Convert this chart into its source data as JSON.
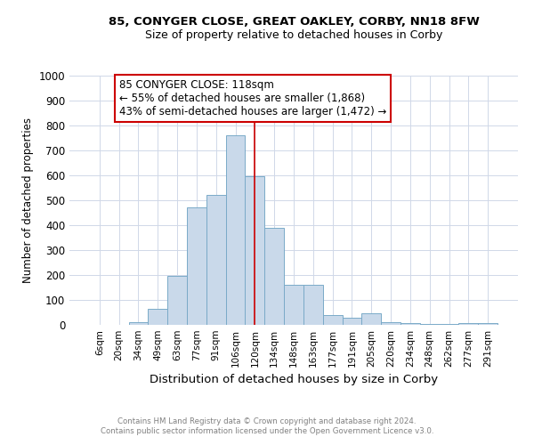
{
  "title1": "85, CONYGER CLOSE, GREAT OAKLEY, CORBY, NN18 8FW",
  "title2": "Size of property relative to detached houses in Corby",
  "xlabel": "Distribution of detached houses by size in Corby",
  "ylabel": "Number of detached properties",
  "categories": [
    "6sqm",
    "20sqm",
    "34sqm",
    "49sqm",
    "63sqm",
    "77sqm",
    "91sqm",
    "106sqm",
    "120sqm",
    "134sqm",
    "148sqm",
    "163sqm",
    "177sqm",
    "191sqm",
    "205sqm",
    "220sqm",
    "234sqm",
    "248sqm",
    "262sqm",
    "277sqm",
    "291sqm"
  ],
  "values": [
    0,
    0,
    12,
    63,
    195,
    470,
    520,
    760,
    595,
    390,
    160,
    160,
    40,
    27,
    45,
    10,
    7,
    3,
    3,
    7,
    7
  ],
  "bar_color": "#c9d9ea",
  "bar_edge_color": "#7aaac8",
  "grid_color": "#d0d8e8",
  "background_color": "#ffffff",
  "vline_x": 8,
  "vline_color": "#cc0000",
  "annotation_text": "85 CONYGER CLOSE: 118sqm\n← 55% of detached houses are smaller (1,868)\n43% of semi-detached houses are larger (1,472) →",
  "annotation_box_color": "#ffffff",
  "annotation_box_edge": "#cc0000",
  "ylim": [
    0,
    1000
  ],
  "yticks": [
    0,
    100,
    200,
    300,
    400,
    500,
    600,
    700,
    800,
    900,
    1000
  ],
  "footer1": "Contains HM Land Registry data © Crown copyright and database right 2024.",
  "footer2": "Contains public sector information licensed under the Open Government Licence v3.0."
}
